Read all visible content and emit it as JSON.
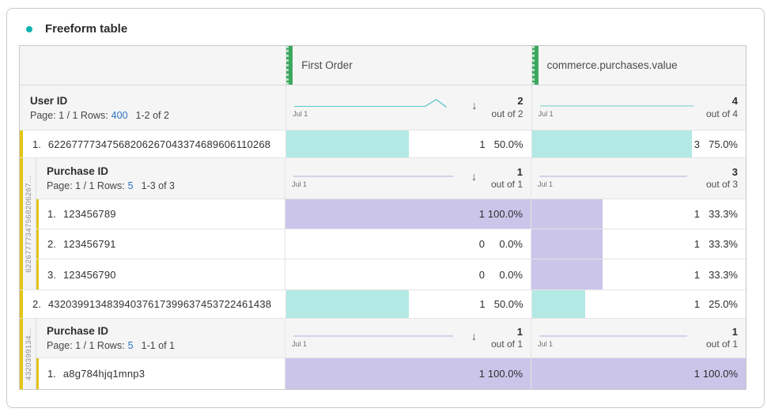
{
  "title": "Freeform table",
  "sort_arrow": "↓",
  "colors": {
    "accent_teal": "#0fb5ae",
    "teal_bar": "#b3e9e5",
    "purple_bar": "#cbc5ea",
    "teal_line": "#58c6c3",
    "purple_line": "#a89fd8",
    "green_handle": "#3da760",
    "yellow_accent": "#e2c512",
    "link_blue": "#2b74c4"
  },
  "columns": {
    "first_order": "First Order",
    "commerce": "commerce.purchases.value"
  },
  "user_section": {
    "dimension": "User ID",
    "pagination": {
      "prefix": "Page: 1 / 1 Rows:",
      "rows": "400",
      "range": "1-2 of 2"
    },
    "fo_summary": {
      "axis": "Jul 1",
      "total": "2",
      "out_of": "out of 2"
    },
    "cv_summary": {
      "axis": "Jul 1",
      "total": "4",
      "out_of": "out of 4"
    }
  },
  "rows": {
    "r1": {
      "num": "1.",
      "id": "62267777347568206267043374689606110268",
      "fo": {
        "value": "1",
        "pct": "50.0%",
        "bar": 50
      },
      "cv": {
        "value": "3",
        "pct": "75.0%",
        "bar": 75
      }
    },
    "b1": {
      "side_label": "62267777347568206267...",
      "dimension": "Purchase ID",
      "pagination": {
        "prefix": "Page: 1 / 1 Rows:",
        "rows": "5",
        "range": "1-3 of 3"
      },
      "fo_summary": {
        "axis": "Jul 1",
        "total": "1",
        "out_of": "out of 1"
      },
      "cv_summary": {
        "axis": "Jul 1",
        "total": "3",
        "out_of": "out of 3"
      },
      "rows": {
        "p1": {
          "num": "1.",
          "id": "123456789",
          "fo": {
            "value": "1",
            "pct": "100.0%",
            "bar": 100
          },
          "cv": {
            "value": "1",
            "pct": "33.3%",
            "bar": 33.3
          }
        },
        "p2": {
          "num": "2.",
          "id": "123456791",
          "fo": {
            "value": "0",
            "pct": "0.0%",
            "bar": 0
          },
          "cv": {
            "value": "1",
            "pct": "33.3%",
            "bar": 33.3
          }
        },
        "p3": {
          "num": "3.",
          "id": "123456790",
          "fo": {
            "value": "0",
            "pct": "0.0%",
            "bar": 0
          },
          "cv": {
            "value": "1",
            "pct": "33.3%",
            "bar": 33.3
          }
        }
      }
    },
    "r2": {
      "num": "2.",
      "id": "43203991348394037617399637453722461438",
      "fo": {
        "value": "1",
        "pct": "50.0%",
        "bar": 50
      },
      "cv": {
        "value": "1",
        "pct": "25.0%",
        "bar": 25
      }
    },
    "b2": {
      "side_label": "4320399134...",
      "dimension": "Purchase ID",
      "pagination": {
        "prefix": "Page: 1 / 1 Rows:",
        "rows": "5",
        "range": "1-1 of 1"
      },
      "fo_summary": {
        "axis": "Jul 1",
        "total": "1",
        "out_of": "out of 1"
      },
      "cv_summary": {
        "axis": "Jul 1",
        "total": "1",
        "out_of": "out of 1"
      },
      "rows": {
        "p1": {
          "num": "1.",
          "id": "a8g784hjq1mnp3",
          "fo": {
            "value": "1",
            "pct": "100.0%",
            "bar": 100
          },
          "cv": {
            "value": "1",
            "pct": "100.0%",
            "bar": 100
          }
        }
      }
    }
  }
}
